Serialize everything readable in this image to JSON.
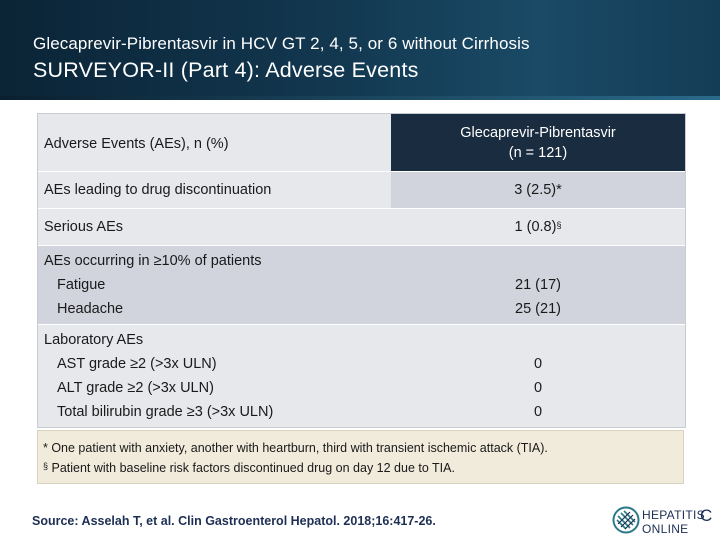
{
  "header": {
    "subtitle": "Glecaprevir-Pibrentasvir in HCV GT 2, 4, 5, or 6 without Cirrhosis",
    "title": "SURVEYOR-II (Part 4): Adverse Events"
  },
  "table": {
    "col_header_left": "Adverse Events (AEs), n (%)",
    "col_header_right_line1": "Glecaprevir-Pibrentasvir",
    "col_header_right_line2": "(n = 121)",
    "rows": [
      {
        "label": "AEs leading to drug discontinuation",
        "value": "3 (2.5)*"
      },
      {
        "label": "Serious AEs",
        "value": "1 (0.8)",
        "value_mark": "§"
      },
      {
        "label": "AEs occurring in ≥10% of patients",
        "sub": [
          {
            "label": "Fatigue",
            "value": "21 (17)"
          },
          {
            "label": "Headache",
            "value": "25 (21)"
          }
        ]
      },
      {
        "label": "Laboratory AEs",
        "sub": [
          {
            "label": "AST grade ≥2 (>3x ULN)",
            "value": "0"
          },
          {
            "label": "ALT grade ≥2 (>3x ULN)",
            "value": "0"
          },
          {
            "label": "Total bilirubin grade ≥3 (>3x ULN)",
            "value": "0"
          }
        ]
      }
    ]
  },
  "footnotes": {
    "line1": "* One patient with anxiety, another with heartburn, third with transient ischemic attack (TIA).",
    "line2_mark": "§",
    "line2": " Patient with baseline risk factors discontinued drug on day 12 due to TIA."
  },
  "source": "Source: Asselah T, et al. Clin Gastroenterol Hepatol. 2018;16:417-26.",
  "logo": {
    "line1": "HEPATITIS",
    "line2": "ONLINE",
    "letter": "C"
  },
  "colors": {
    "header_dark": "#0b2436",
    "table_header": "#1a2c40",
    "row_light": "#e6e8ec",
    "row_mid": "#d1d4dc",
    "footnote_bg": "#f1ebdc",
    "source_text": "#1d2f54"
  },
  "icons": {
    "logo_mark": "hepatitis-c-online-logo-icon"
  }
}
